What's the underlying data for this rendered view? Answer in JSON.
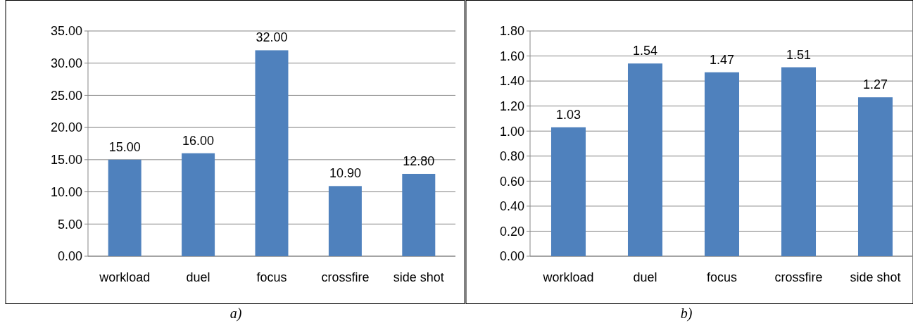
{
  "chart_data": [
    {
      "type": "bar",
      "categories": [
        "workload",
        "duel",
        "focus",
        "crossfire",
        "side shot"
      ],
      "values": [
        15,
        16,
        32,
        10.9,
        12.8
      ],
      "color": "#4f81bd",
      "value_labels": [
        "15.00",
        "16.00",
        "32.00",
        "10.90",
        "12.80"
      ],
      "ylim": [
        0,
        35
      ],
      "yticks": [
        {
          "value": 0,
          "label": "0.00"
        },
        {
          "value": 5,
          "label": "5.00"
        },
        {
          "value": 10,
          "label": "10.00"
        },
        {
          "value": 15,
          "label": "15.00"
        },
        {
          "value": 20,
          "label": "20.00"
        },
        {
          "value": 25,
          "label": "25.00"
        },
        {
          "value": 30,
          "label": "30.00"
        },
        {
          "value": 35,
          "label": "35.00"
        }
      ],
      "grid": "y",
      "annotations": [
        "a)"
      ]
    },
    {
      "type": "bar",
      "categories": [
        "workload",
        "duel",
        "focus",
        "crossfire",
        "side shot"
      ],
      "values": [
        1.03,
        1.54,
        1.47,
        1.51,
        1.27
      ],
      "color": "#4f81bd",
      "value_labels": [
        "1.03",
        "1.54",
        "1.47",
        "1.51",
        "1.27"
      ],
      "ylim": [
        0,
        1.8
      ],
      "yticks": [
        {
          "value": 0,
          "label": "0.00"
        },
        {
          "value": 0.2,
          "label": "0.20"
        },
        {
          "value": 0.4,
          "label": "0.40"
        },
        {
          "value": 0.6,
          "label": "0.60"
        },
        {
          "value": 0.8,
          "label": "0.80"
        },
        {
          "value": 1,
          "label": "1.00"
        },
        {
          "value": 1.2,
          "label": "1.20"
        },
        {
          "value": 1.4,
          "label": "1.40"
        },
        {
          "value": 1.6,
          "label": "1.60"
        },
        {
          "value": 1.8,
          "label": "1.80"
        }
      ],
      "grid": "y",
      "annotations": [
        "b)"
      ]
    }
  ]
}
